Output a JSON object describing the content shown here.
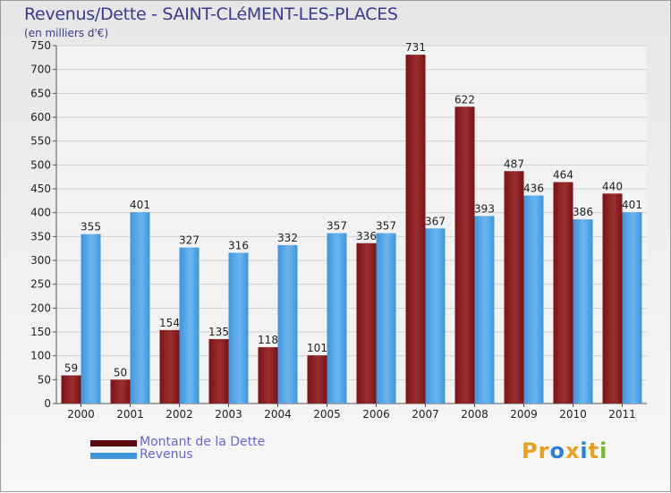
{
  "header": {
    "title": "Revenus/Dette - SAINT-CLéMENT-LES-PLACES",
    "subtitle": "(en milliers d'€)"
  },
  "colors": {
    "dette": "#7a1416",
    "dette_light": "#9a2e30",
    "revenus": "#3f96dc",
    "revenus_light": "#6db4ee",
    "axis_text": "#222222",
    "grid": "#d2d2d2",
    "legend_text": "#6b63d8",
    "title_text": "#3d3a8c"
  },
  "chart_data": {
    "type": "bar",
    "title": "Revenus/Dette - SAINT-CLéMENT-LES-PLACES",
    "ylabel": "(en milliers d'€)",
    "xlabel": "",
    "categories": [
      "2000",
      "2001",
      "2002",
      "2003",
      "2004",
      "2005",
      "2006",
      "2007",
      "2008",
      "2009",
      "2010",
      "2011"
    ],
    "series": [
      {
        "name": "Montant de la Dette",
        "values": [
          59,
          50,
          154,
          135,
          118,
          101,
          336,
          731,
          622,
          487,
          464,
          440
        ]
      },
      {
        "name": "Revenus",
        "values": [
          355,
          401,
          327,
          316,
          332,
          357,
          357,
          367,
          393,
          436,
          386,
          401
        ]
      }
    ],
    "ylim": [
      0,
      750
    ],
    "yticks": [
      0,
      50,
      100,
      150,
      200,
      250,
      300,
      350,
      400,
      450,
      500,
      550,
      600,
      650,
      700,
      750
    ],
    "grid": true,
    "legend": "bottom-left"
  },
  "legend": {
    "items": [
      {
        "label": "Montant de la Dette"
      },
      {
        "label": "Revenus"
      }
    ]
  },
  "brand": {
    "letters": [
      "P",
      "r",
      "o",
      "x",
      "i",
      "t",
      "i"
    ],
    "letter_colors": [
      "#e8a020",
      "#e8a020",
      "#2a7fd6",
      "#e8a020",
      "#2a7fd6",
      "#e8a020",
      "#6cbc2c"
    ]
  }
}
